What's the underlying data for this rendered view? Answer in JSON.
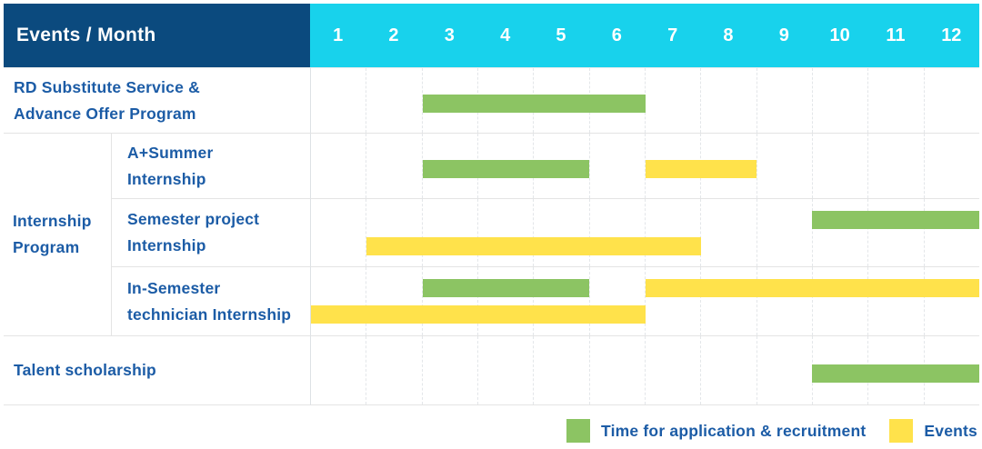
{
  "header": {
    "label": "Events / Month"
  },
  "colors": {
    "header_bg": "#0B4A7E",
    "months_bg": "#18D2EC",
    "green": "#8CC463",
    "yellow": "#FFE24B",
    "text_blue": "#1C5CA6",
    "grid_line": "#E3E6E9"
  },
  "chart_data": {
    "type": "gantt",
    "unit": "month",
    "x_range": [
      1,
      12
    ],
    "months": [
      "1",
      "2",
      "3",
      "4",
      "5",
      "6",
      "7",
      "8",
      "9",
      "10",
      "11",
      "12"
    ],
    "grid": "dashed-vertical-month-lines",
    "legend_position": "bottom-right",
    "legend": [
      {
        "label": "Time for application & recruitment",
        "color": "green"
      },
      {
        "label": "Events",
        "color": "yellow"
      }
    ],
    "groups": [
      {
        "label": "Internship Program",
        "label_lines": [
          "Internship",
          "Program"
        ],
        "row_indexes": [
          1,
          2,
          3
        ]
      }
    ],
    "rows": [
      {
        "label": "RD Substitute Service & Advance Offer Program",
        "label_lines": [
          "RD Substitute Service &",
          "Advance Offer Program"
        ],
        "group": null,
        "lines": 1,
        "bars": [
          {
            "color": "green",
            "start_month": 3,
            "end_month": 6,
            "line": 0
          }
        ]
      },
      {
        "label": "A+Summer Internship",
        "label_lines": [
          "A+Summer",
          "Internship"
        ],
        "group": "Internship Program",
        "lines": 1,
        "bars": [
          {
            "color": "green",
            "start_month": 3,
            "end_month": 5,
            "line": 0
          },
          {
            "color": "yellow",
            "start_month": 7,
            "end_month": 8,
            "line": 0
          }
        ]
      },
      {
        "label": "Semester project Internship",
        "label_lines": [
          "Semester project",
          "Internship"
        ],
        "group": "Internship Program",
        "lines": 2,
        "bars": [
          {
            "color": "green",
            "start_month": 10,
            "end_month": 12,
            "line": 0
          },
          {
            "color": "yellow",
            "start_month": 2,
            "end_month": 7,
            "line": 1
          }
        ]
      },
      {
        "label": "In-Semester technician Internship",
        "label_lines": [
          "In-Semester",
          "technician Internship"
        ],
        "group": "Internship Program",
        "lines": 2,
        "bars": [
          {
            "color": "green",
            "start_month": 3,
            "end_month": 5,
            "line": 0
          },
          {
            "color": "yellow",
            "start_month": 7,
            "end_month": 12,
            "line": 0
          },
          {
            "color": "yellow",
            "start_month": 1,
            "end_month": 6,
            "line": 1
          }
        ]
      },
      {
        "label": "Talent scholarship",
        "label_lines": [
          "Talent scholarship"
        ],
        "group": null,
        "lines": 1,
        "bars": [
          {
            "color": "green",
            "start_month": 10,
            "end_month": 12,
            "line": 0
          }
        ]
      }
    ]
  }
}
